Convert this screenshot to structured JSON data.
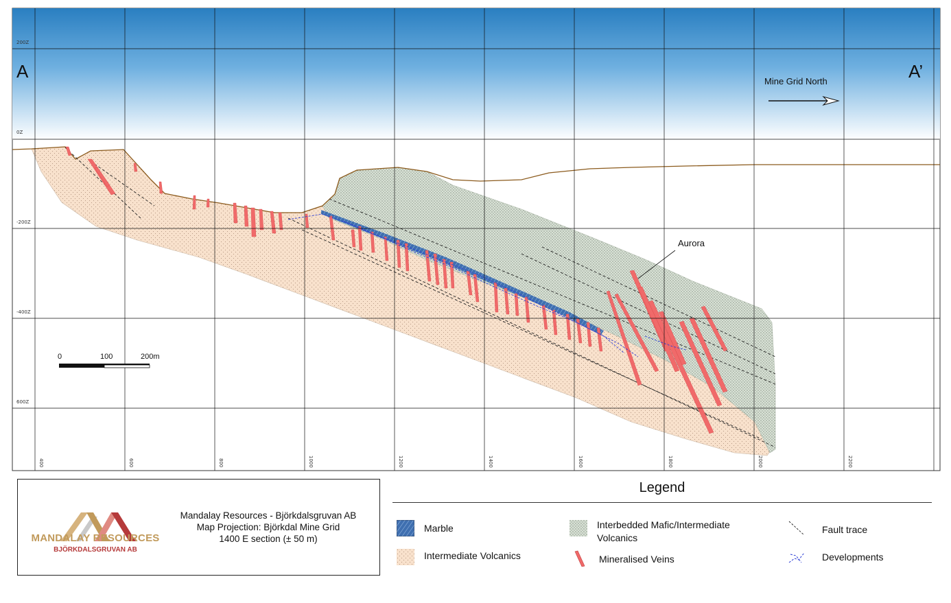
{
  "section": {
    "left_label": "A",
    "right_label": "A’",
    "north_label": "Mine Grid North",
    "elevations": [
      "200Z",
      "0Z",
      "-200Z",
      "-400Z",
      "600Z"
    ],
    "eastings": [
      "400",
      "600",
      "800",
      "1000",
      "1200",
      "1400",
      "1600",
      "1800",
      "2000",
      "2200"
    ],
    "annotation": "Aurora",
    "scale_bar": {
      "labels": [
        "0",
        "100",
        "200m"
      ]
    }
  },
  "title_block": {
    "company": "MANDALAY RESOURCES",
    "subsidiary": "BJÖRKDALSGRUVAN AB",
    "lines": [
      "Mandalay Resources - Björkdalsgruvan AB",
      "Map Projection: Björkdal Mine Grid",
      "1400 E section (± 50 m)"
    ]
  },
  "legend": {
    "title": "Legend",
    "items": [
      {
        "name": "marble",
        "label": "Marble"
      },
      {
        "name": "intermediate-volcanics",
        "label": "Intermediate Volcanics"
      },
      {
        "name": "mafic-volcanics",
        "label": "Interbedded Mafic/Intermediate Volcanics"
      },
      {
        "name": "mineralised-veins",
        "label": "Mineralised Veins"
      },
      {
        "name": "fault-trace",
        "label": "Fault trace"
      },
      {
        "name": "developments",
        "label": "Developments"
      }
    ]
  },
  "colors": {
    "sky_top": "#2a7fc1",
    "intermediate_volcanics": "#f8e1cc",
    "mafic_volcanics": "#d9e2d6",
    "marble": "#3f6fb0",
    "veins": "#f06a6a",
    "topography": "#8b5a1c"
  }
}
